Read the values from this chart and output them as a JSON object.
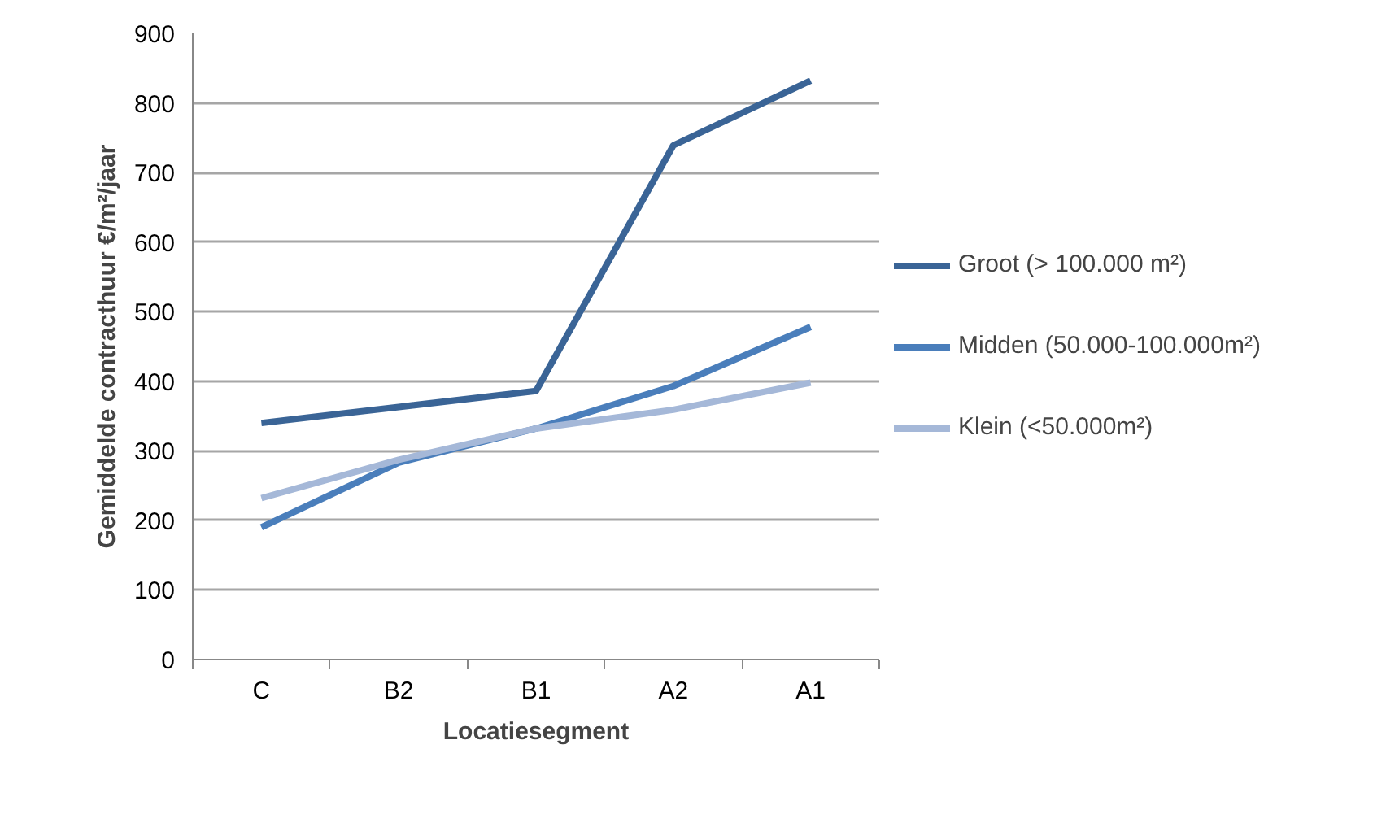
{
  "chart_data": {
    "type": "line",
    "xlabel": "Locatiesegment",
    "ylabel": "Gemiddelde contracthuur €/m²/jaar",
    "categories": [
      "C",
      "B2",
      "B1",
      "A2",
      "A1"
    ],
    "ylim": [
      0,
      900
    ],
    "yticks": [
      0,
      100,
      200,
      300,
      400,
      500,
      600,
      700,
      800,
      900
    ],
    "grid": "y",
    "legend": "right",
    "marker": "none",
    "line_style": "solid",
    "series": [
      {
        "name": "Groot (> 100.000 m²)",
        "color": "#3a6496",
        "values": [
          340,
          363,
          386,
          739,
          832
        ]
      },
      {
        "name": "Midden (50.000-100.000m²)",
        "color": "#4a7ebb",
        "values": [
          190,
          283,
          332,
          393,
          478
        ]
      },
      {
        "name": "Klein (<50.000m²)",
        "color": "#a5b8d8",
        "values": [
          232,
          287,
          332,
          359,
          398
        ]
      }
    ]
  }
}
